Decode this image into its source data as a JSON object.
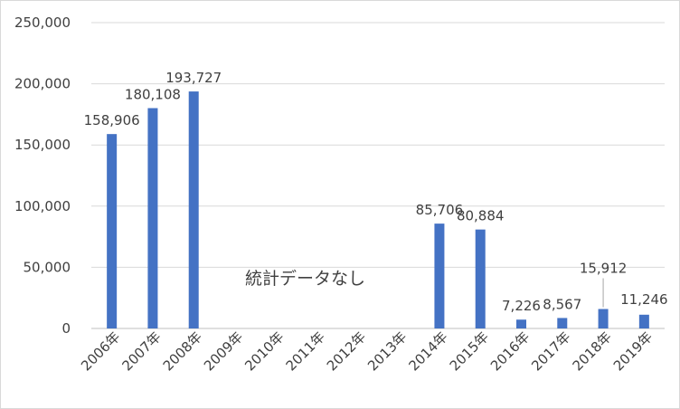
{
  "chart_data": {
    "type": "bar",
    "categories": [
      "2006年",
      "2007年",
      "2008年",
      "2009年",
      "2010年",
      "2011年",
      "2012年",
      "2013年",
      "2014年",
      "2015年",
      "2016年",
      "2017年",
      "2018年",
      "2019年"
    ],
    "values": [
      158906,
      180108,
      193727,
      null,
      null,
      null,
      null,
      null,
      85706,
      80884,
      7226,
      8567,
      15912,
      11246
    ],
    "data_labels": [
      "158,906",
      "180,108",
      "193,727",
      "",
      "",
      "",
      "",
      "",
      "85,706",
      "80,884",
      "7,226",
      "8,567",
      "15,912",
      "11,246"
    ],
    "ylim": [
      0,
      250000
    ],
    "y_ticks": [
      0,
      50000,
      100000,
      150000,
      200000,
      250000
    ],
    "y_tick_labels": [
      "0",
      "50,000",
      "100,000",
      "150,000",
      "200,000",
      "250,000"
    ],
    "annotation": "統計データなし",
    "bar_color": "#4472c4",
    "gridlines": true,
    "legend": "none"
  }
}
